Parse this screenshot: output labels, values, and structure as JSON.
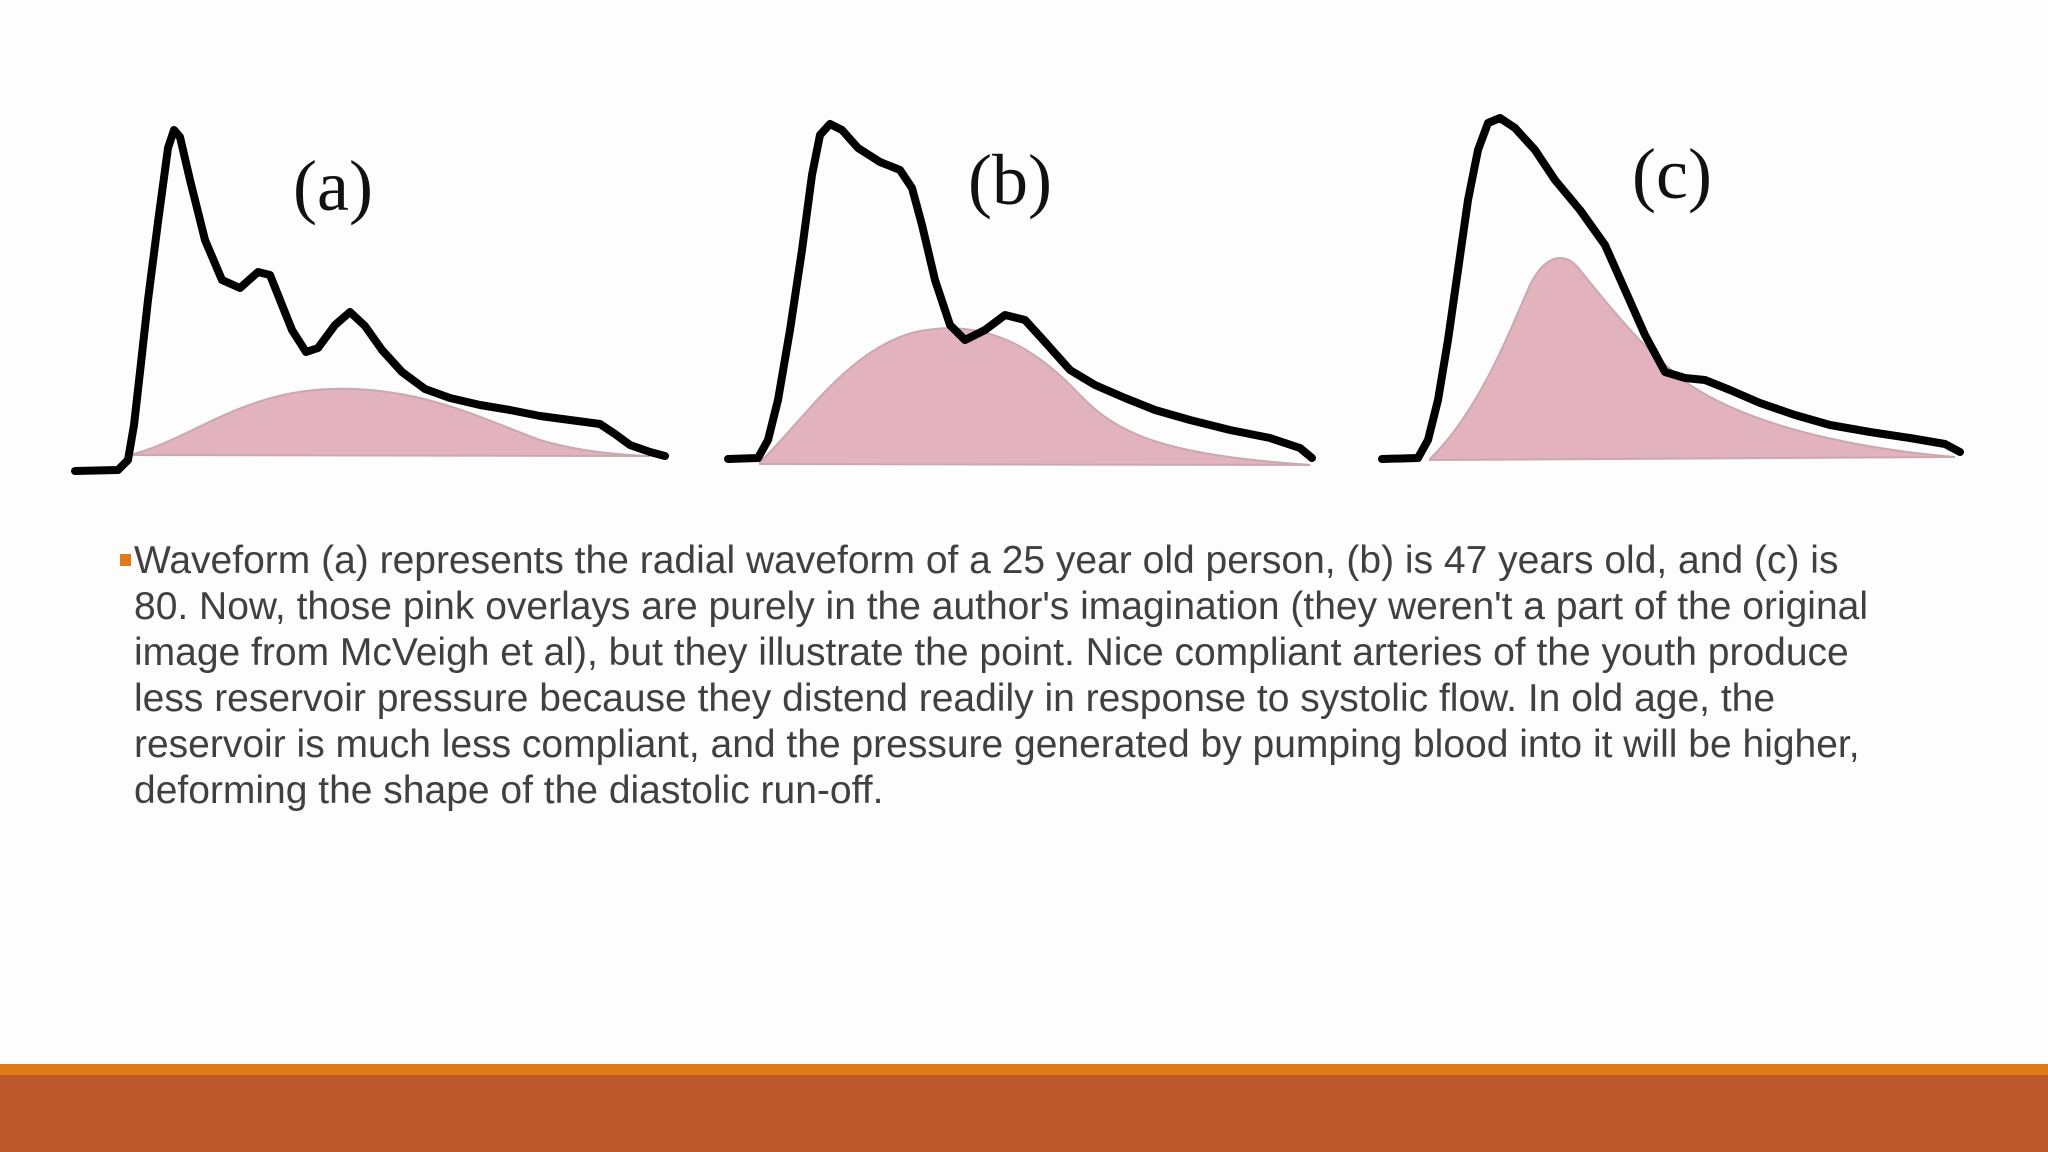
{
  "figure": {
    "panels": [
      {
        "label": "(a)",
        "age_years": 25
      },
      {
        "label": "(b)",
        "age_years": 47
      },
      {
        "label": "(c)",
        "age_years": 80
      }
    ],
    "waveform_color": "#000000",
    "overlay_color": "#e3b2bf"
  },
  "body": {
    "bullet_text": "Waveform (a)  represents the radial waveform of a 25 year old person, (b) is 47 years old, and (c) is 80. Now, those pink overlays are purely in the author's imagination (they weren't a part of the original image from McVeigh et al), but they illustrate the point. Nice compliant arteries of the youth produce less reservoir pressure because they distend readily in response to systolic flow. In old age, the reservoir is much less compliant, and the pressure generated by pumping blood into it will be higher, deforming the shape of the diastolic run-off."
  },
  "theme": {
    "bullet_color": "#e07b1a",
    "footer_stripe_color": "#e07b1a",
    "footer_color": "#bd582c",
    "text_color": "#404040"
  }
}
